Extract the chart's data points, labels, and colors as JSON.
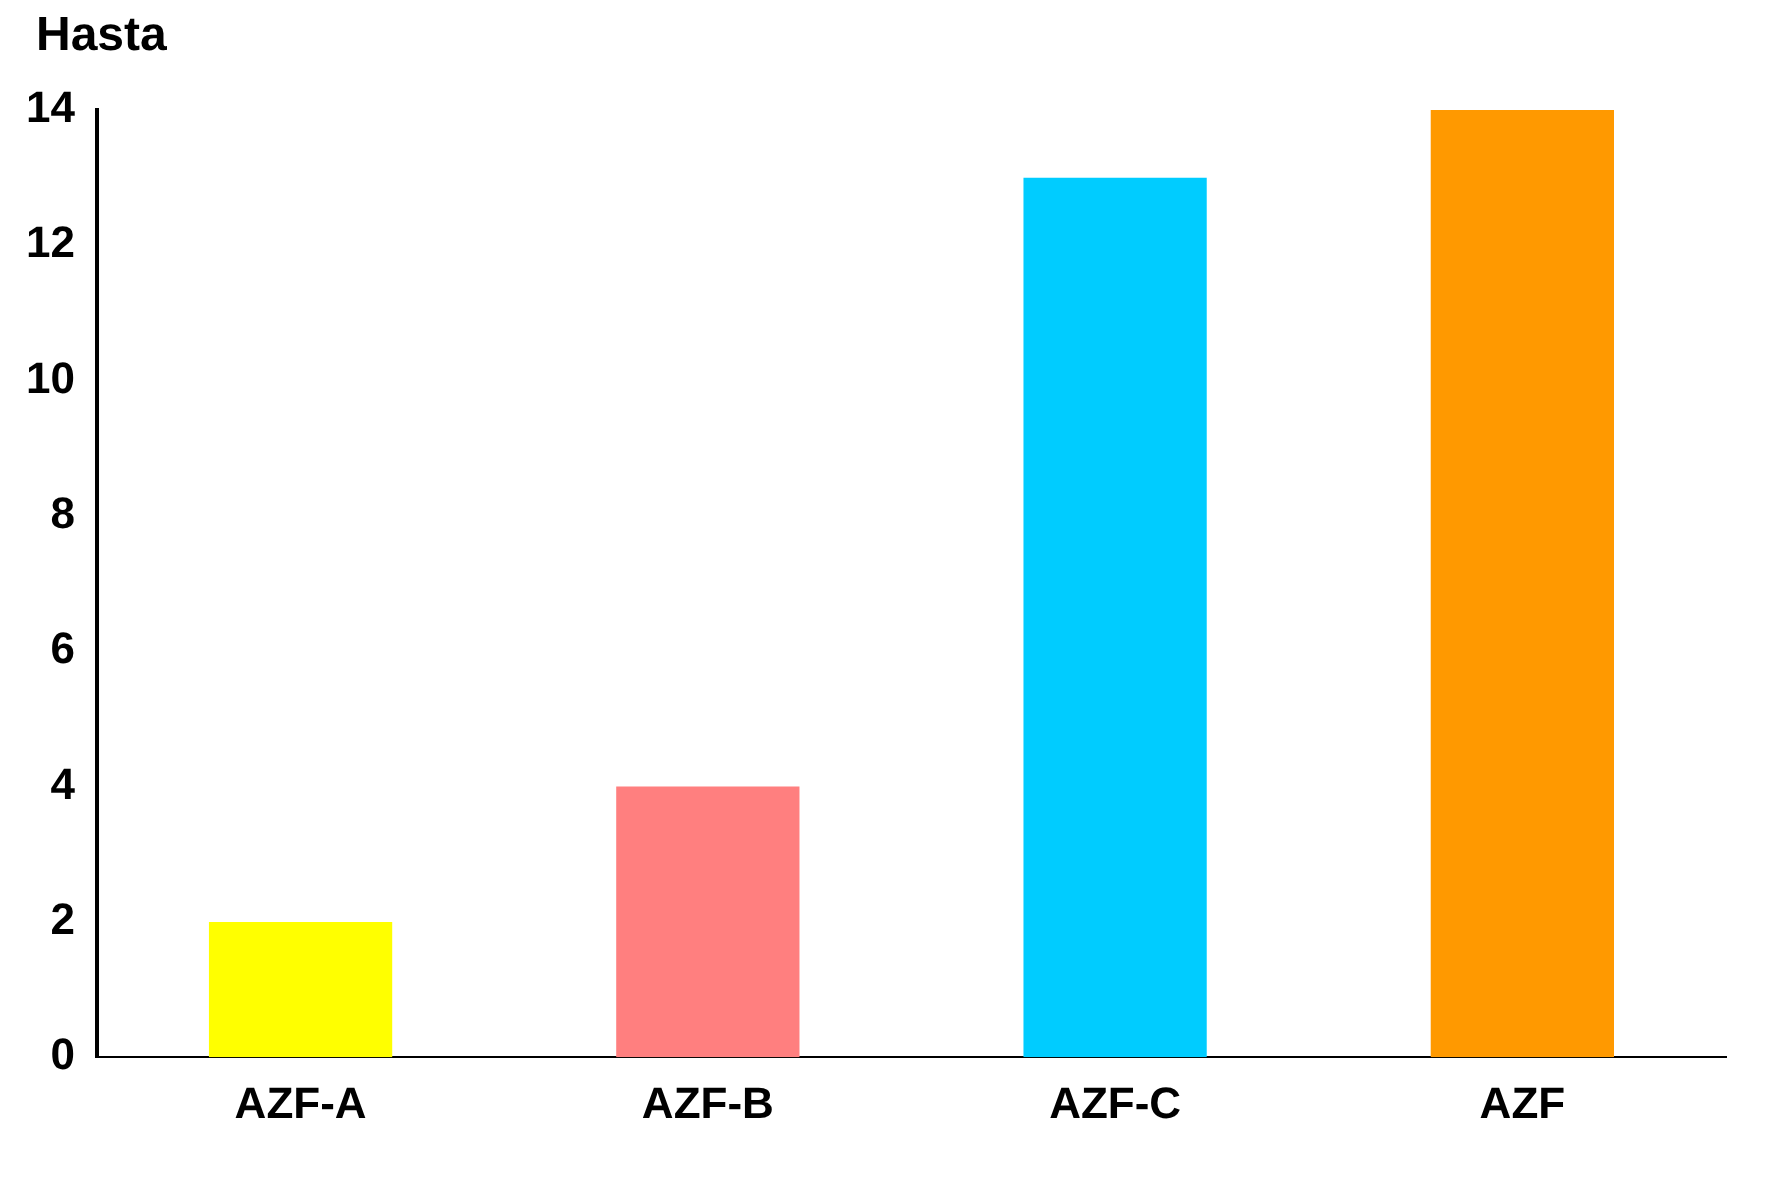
{
  "chart_data": {
    "type": "bar",
    "ylabel": "Hasta",
    "categories": [
      "AZF-A",
      "AZF-B",
      "AZF-C",
      "AZF"
    ],
    "values": [
      2,
      4,
      13,
      14
    ],
    "colors": [
      "#ffff00",
      "#ff7f7f",
      "#00ccff",
      "#ff9900"
    ],
    "ylim": [
      0,
      14
    ],
    "yticks": [
      0,
      2,
      4,
      6,
      8,
      10,
      12,
      14
    ],
    "grid": false,
    "legend": false
  }
}
